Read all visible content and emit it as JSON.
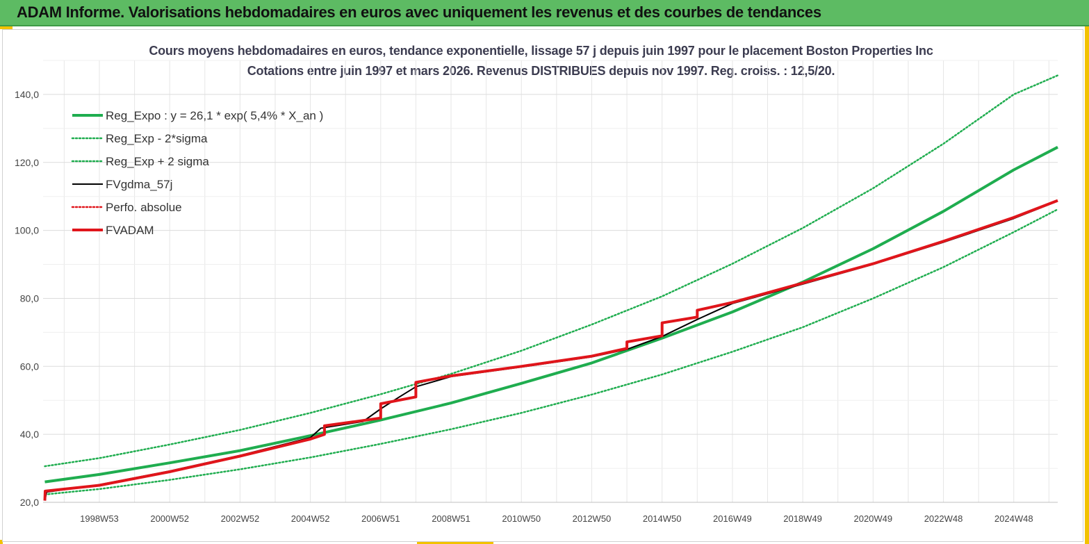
{
  "banner": {
    "title": "ADAM Informe. Valorisations hebdomadaires en euros avec uniquement les revenus et des courbes de tendances"
  },
  "colors": {
    "banner_bg": "#5dbb63",
    "trend_green": "#1fad4f",
    "black_series": "#000000",
    "red_series": "#e0151b"
  },
  "chart_data": {
    "type": "line",
    "title": "Cours moyens hebdomadaires en euros, tendance exponentielle, lissage 57 j depuis juin 1997 pour le placement Boston Properties Inc",
    "subtitle": "Cotations entre juin 1997 et mars 2026. Revenus DISTRIBUES  depuis nov 1997. Reg. croiss. : 12,5/20.",
    "xlabel": "",
    "ylabel": "",
    "xlim": [
      1997.4,
      2026.25
    ],
    "ylim": [
      20,
      150
    ],
    "y_ticks": [
      20,
      40,
      60,
      80,
      100,
      120,
      140
    ],
    "y_tick_labels": [
      "20,0",
      "40,0",
      "60,0",
      "80,0",
      "100,0",
      "120,0",
      "140,0"
    ],
    "x_ticks": [
      {
        "label": "1998W53",
        "x": 1999.0
      },
      {
        "label": "2000W52",
        "x": 2001.0
      },
      {
        "label": "2002W52",
        "x": 2003.0
      },
      {
        "label": "2004W52",
        "x": 2005.0
      },
      {
        "label": "2006W51",
        "x": 2007.0
      },
      {
        "label": "2008W51",
        "x": 2009.0
      },
      {
        "label": "2010W50",
        "x": 2011.0
      },
      {
        "label": "2012W50",
        "x": 2013.0
      },
      {
        "label": "2014W50",
        "x": 2015.0
      },
      {
        "label": "2016W49",
        "x": 2017.0
      },
      {
        "label": "2018W49",
        "x": 2019.0
      },
      {
        "label": "2020W49",
        "x": 2021.0
      },
      {
        "label": "2022W48",
        "x": 2023.0
      },
      {
        "label": "2024W48",
        "x": 2025.0
      }
    ],
    "grid": true,
    "legend_position": "top-left",
    "series": [
      {
        "name": "Reg_Expo : y = 26,1 * exp( 5,4% *  X_an )",
        "style": "solid-thick",
        "color": "#1fad4f",
        "x": [
          1997.45,
          1999,
          2001,
          2003,
          2005,
          2007,
          2009,
          2011,
          2013,
          2015,
          2017,
          2019,
          2021,
          2023,
          2025,
          2026.25
        ],
        "y": [
          26.0,
          28.2,
          31.6,
          35.2,
          39.6,
          44.2,
          49.2,
          55.0,
          61.0,
          68.3,
          76.0,
          84.8,
          94.6,
          105.6,
          117.8,
          124.5
        ]
      },
      {
        "name": "Reg_Exp - 2*sigma",
        "style": "dotted",
        "color": "#1fad4f",
        "x": [
          1997.45,
          1999,
          2001,
          2003,
          2005,
          2007,
          2009,
          2011,
          2013,
          2015,
          2017,
          2019,
          2021,
          2023,
          2025,
          2026.25
        ],
        "y": [
          22.3,
          23.9,
          26.6,
          29.7,
          33.2,
          37.2,
          41.5,
          46.3,
          51.7,
          57.6,
          64.3,
          71.5,
          80.0,
          89.2,
          99.5,
          106.2
        ]
      },
      {
        "name": "Reg_Exp + 2 sigma",
        "style": "dotted",
        "color": "#1fad4f",
        "x": [
          1997.45,
          1999,
          2001,
          2003,
          2005,
          2007,
          2009,
          2011,
          2013,
          2015,
          2017,
          2019,
          2021,
          2023,
          2025,
          2026.25
        ],
        "y": [
          30.6,
          33.0,
          37.0,
          41.3,
          46.3,
          51.8,
          57.8,
          64.6,
          72.3,
          80.6,
          90.2,
          100.7,
          112.4,
          125.5,
          140.0,
          145.6
        ]
      },
      {
        "name": "FVgdma_57j",
        "style": "solid-thin",
        "color": "#000000",
        "x": [
          1997.45,
          1997.5,
          1999,
          2001,
          2003,
          2005,
          2005.3,
          2006.5,
          2007.0,
          2007.5,
          2008.0,
          2009,
          2011,
          2013,
          2014.0,
          2015.0,
          2016.0,
          2017,
          2019,
          2021,
          2023,
          2025,
          2026.25
        ],
        "y": [
          20.5,
          23.0,
          25.2,
          29.2,
          33.8,
          39.0,
          41.8,
          43.8,
          47.5,
          50.8,
          54.0,
          57.0,
          59.8,
          62.8,
          65.0,
          68.8,
          73.8,
          78.5,
          84.2,
          90.0,
          96.5,
          103.5,
          108.6
        ]
      },
      {
        "name": "Perfo. absolue",
        "style": "dotted",
        "color": "#e0151b",
        "x": [],
        "y": []
      },
      {
        "name": "FVADAM",
        "style": "solid-thick",
        "color": "#e0151b",
        "x": [
          1997.45,
          1997.46,
          1999,
          2001,
          2003,
          2005,
          2005.4,
          2005.4,
          2007.0,
          2007.0,
          2008.0,
          2008.0,
          2009,
          2011,
          2013,
          2014.0,
          2014.0,
          2015.0,
          2015.0,
          2016.0,
          2016.0,
          2017,
          2019,
          2021,
          2023,
          2025,
          2026.25
        ],
        "y": [
          20.5,
          23.3,
          25.0,
          29.0,
          33.6,
          38.6,
          40.0,
          42.5,
          44.8,
          49.0,
          51.0,
          55.3,
          57.2,
          60.0,
          63.0,
          65.3,
          67.2,
          69.0,
          72.8,
          74.5,
          76.5,
          78.8,
          84.5,
          90.2,
          96.8,
          103.8,
          108.8
        ]
      }
    ]
  }
}
